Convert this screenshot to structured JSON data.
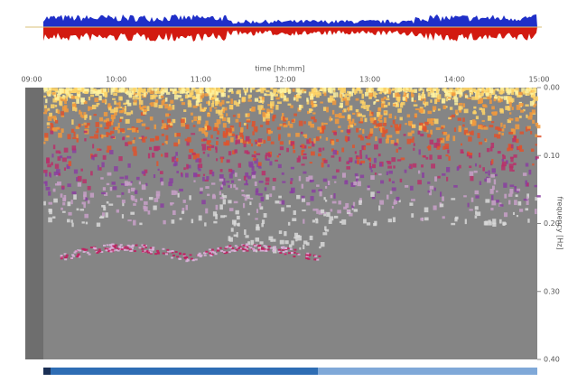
{
  "chart_data": {
    "type": "spectrogram",
    "xlabel": "time [hh:mm]",
    "ylabel": "frequency [Hz]",
    "categories": [
      "09:00",
      "10:00",
      "11:00",
      "12:00",
      "13:00",
      "14:00",
      "15:00"
    ],
    "ylim": [
      0,
      0.4
    ],
    "yticks": [
      {
        "value": 0,
        "label": "0.00"
      },
      {
        "value": 0.1,
        "label": "0.10"
      },
      {
        "value": 0.2,
        "label": "0.20"
      },
      {
        "value": 0.3,
        "label": "0.30"
      },
      {
        "value": 0.4,
        "label": "0.40"
      }
    ]
  }
}
